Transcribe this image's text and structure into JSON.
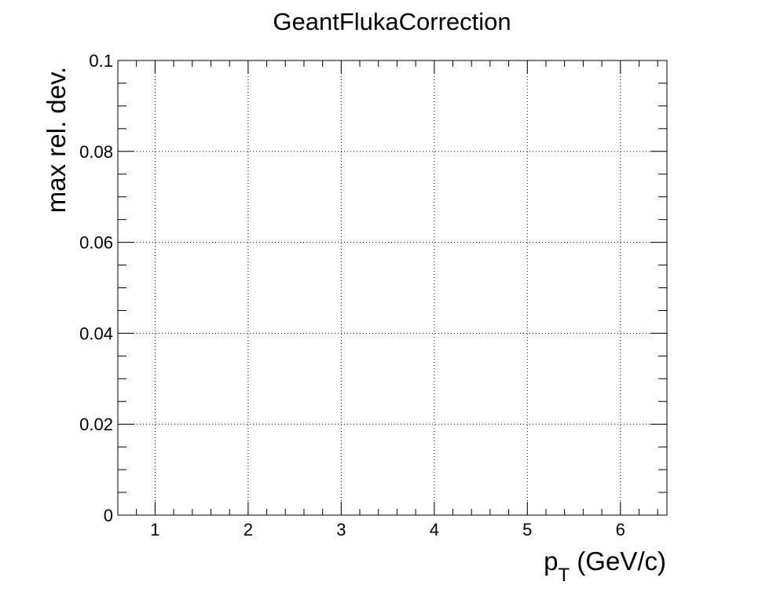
{
  "chart_data": {
    "type": "line",
    "title": "GeantFlukaCorrection",
    "xlabel_main": "p",
    "xlabel_sub": "T",
    "xlabel_rest": " (GeV/c)",
    "ylabel": "max rel. dev.",
    "xlim": [
      0.6,
      6.5
    ],
    "ylim": [
      0,
      0.1
    ],
    "x_major_ticks": [
      1,
      2,
      3,
      4,
      5,
      6
    ],
    "x_tick_labels": [
      "1",
      "2",
      "3",
      "4",
      "5",
      "6"
    ],
    "x_minor_step": 0.2,
    "y_major_ticks": [
      0,
      0.02,
      0.04,
      0.06,
      0.08,
      0.1
    ],
    "y_tick_labels": [
      "0",
      "0.02",
      "0.04",
      "0.06",
      "0.08",
      "0.1"
    ],
    "y_minor_step": 0.005,
    "grid": true,
    "series": []
  }
}
